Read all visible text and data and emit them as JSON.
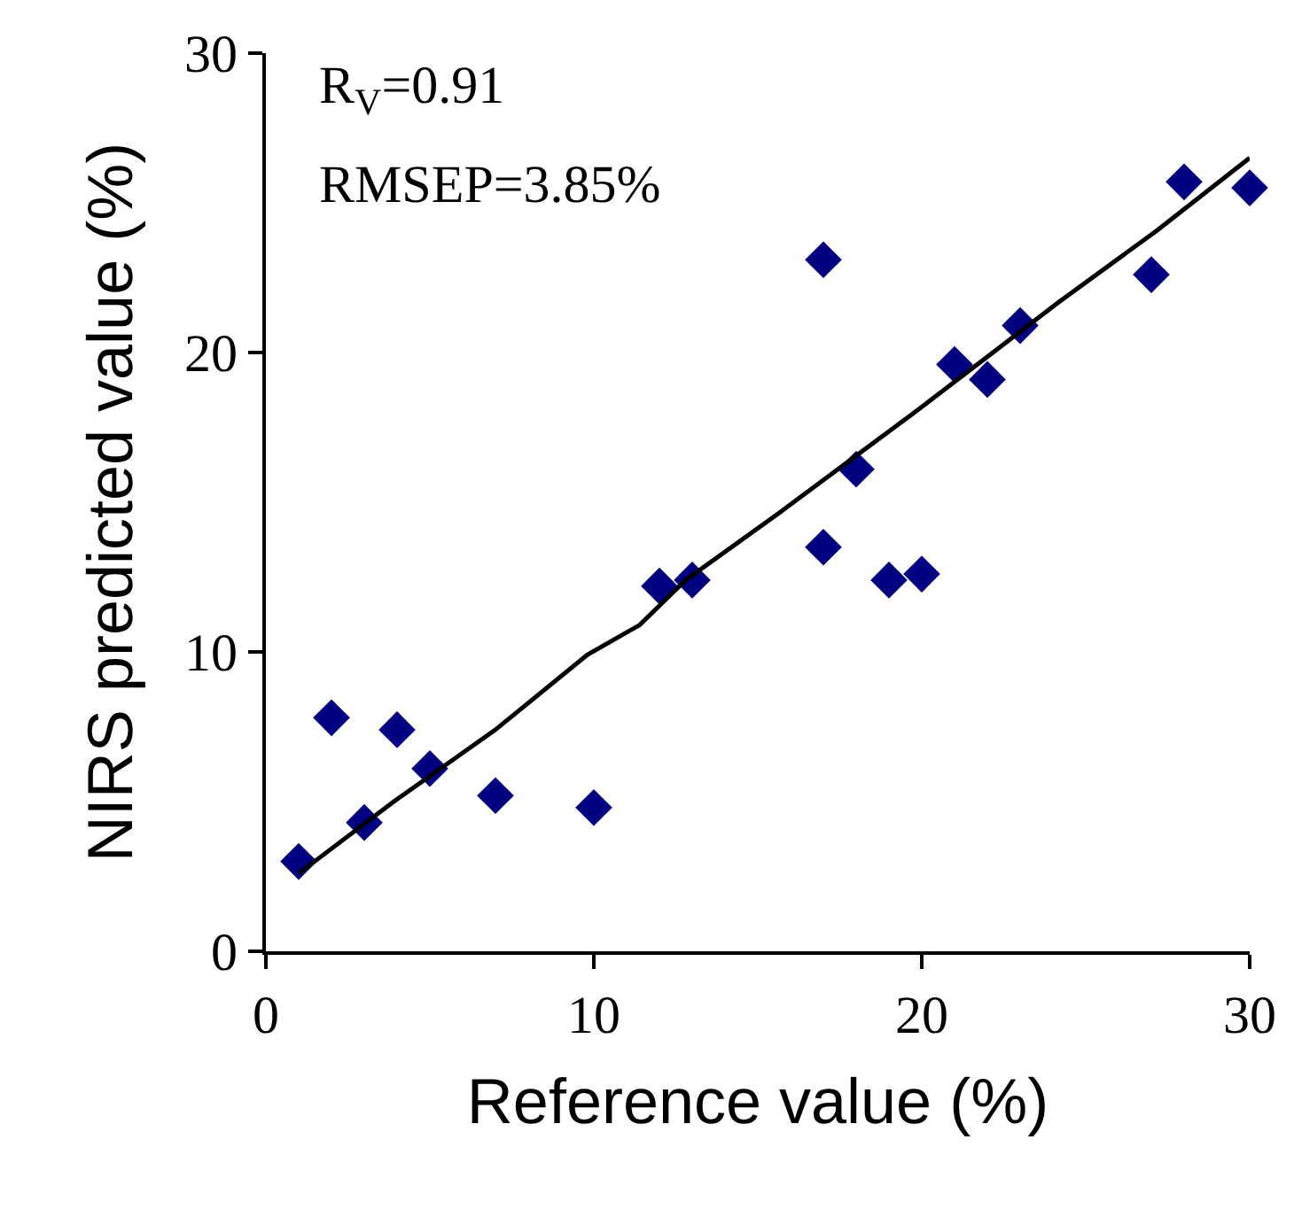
{
  "chart_data": {
    "type": "scatter",
    "xlabel": "Reference value (%)",
    "ylabel": "NIRS predicted value (%)",
    "annotations": [
      "R$_{V}$=0.91",
      "RMSEP=3.85%"
    ],
    "series": [
      {
        "color": "#000080",
        "marker": "diamond",
        "x": [
          1,
          2,
          3,
          4,
          5,
          7,
          10,
          12,
          13,
          17,
          17,
          18,
          19,
          20,
          21,
          22,
          23,
          27,
          28,
          30
        ],
        "values": [
          3.0,
          7.8,
          4.3,
          7.4,
          6.1,
          5.2,
          4.8,
          12.2,
          12.4,
          13.5,
          23.1,
          16.1,
          12.4,
          12.6,
          19.6,
          19.1,
          20.9,
          22.6,
          25.7,
          25.5
        ]
      },
      {
        "type": "line",
        "color": "#000000",
        "line_style": "solid",
        "x": [
          1,
          3.9,
          7,
          9.8,
          11.4,
          12.8,
          15.6,
          19.9,
          24.2,
          27.2,
          30
        ],
        "values": [
          2.6,
          5.0,
          7.4,
          9.9,
          10.9,
          12.4,
          14.6,
          18.1,
          21.7,
          24.1,
          26.5
        ]
      }
    ],
    "xlim": [
      0,
      30
    ],
    "xticks": [
      0,
      10,
      20,
      30
    ],
    "ylim": [
      0,
      30
    ],
    "yticks": [
      0,
      10,
      20,
      30
    ]
  }
}
